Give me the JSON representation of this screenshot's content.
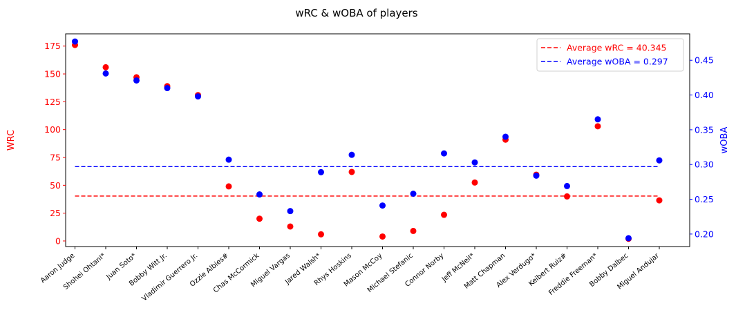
{
  "chart_data": {
    "type": "scatter",
    "title": "wRC & wOBA of players",
    "categories": [
      "Aaron Judge",
      "Shohei Ohtani*",
      "Juan Soto*",
      "Bobby Witt Jr.",
      "Vladimir Guerrero Jr.",
      "Ozzie Albies#",
      "Chas McCormick",
      "Miguel Vargas",
      "Jared Walsh*",
      "Rhys Hoskins",
      "Mason McCoy",
      "Michael Stefanic",
      "Connor Norby",
      "Jeff McNeil*",
      "Matt Chapman",
      "Alex Verdugo*",
      "Keibert Ruiz#",
      "Freddie Freeman*",
      "Bobby Dalbec",
      "Miguel Andujar"
    ],
    "left_axis": {
      "label": "WRC",
      "color": "#ff0000",
      "ylim": [
        -5,
        186
      ],
      "ticks": [
        0,
        25,
        50,
        75,
        100,
        125,
        150,
        175
      ],
      "tick_labels": [
        "0",
        "25",
        "50",
        "75",
        "100",
        "125",
        "150",
        "175"
      ]
    },
    "right_axis": {
      "label": "wOBA",
      "color": "#0000ff",
      "ylim": [
        0.182,
        0.488
      ],
      "ticks": [
        0.2,
        0.25,
        0.3,
        0.35,
        0.4,
        0.45
      ],
      "tick_labels": [
        "0.20",
        "0.25",
        "0.30",
        "0.35",
        "0.40",
        "0.45"
      ]
    },
    "series": [
      {
        "name": "wRC",
        "axis": "left",
        "color": "#ff0000",
        "values": [
          176,
          156,
          147,
          139,
          131,
          49,
          20,
          13,
          6,
          62,
          4,
          9,
          23.5,
          52.5,
          91,
          59.5,
          40,
          103,
          2,
          36.5
        ]
      },
      {
        "name": "wOBA",
        "axis": "right",
        "color": "#0000ff",
        "values": [
          0.477,
          0.431,
          0.421,
          0.41,
          0.398,
          0.307,
          0.257,
          0.233,
          0.289,
          0.314,
          0.241,
          0.258,
          0.316,
          0.303,
          0.34,
          0.284,
          0.269,
          0.365,
          0.194,
          0.306
        ]
      }
    ],
    "averages": [
      {
        "label": "Average wRC = 40.345",
        "axis": "left",
        "value": 40.345,
        "color": "#ff0000"
      },
      {
        "label": "Average wOBA = 0.297",
        "axis": "right",
        "value": 0.297,
        "color": "#0000ff"
      }
    ],
    "legend_position": "top-right",
    "grid": false
  }
}
